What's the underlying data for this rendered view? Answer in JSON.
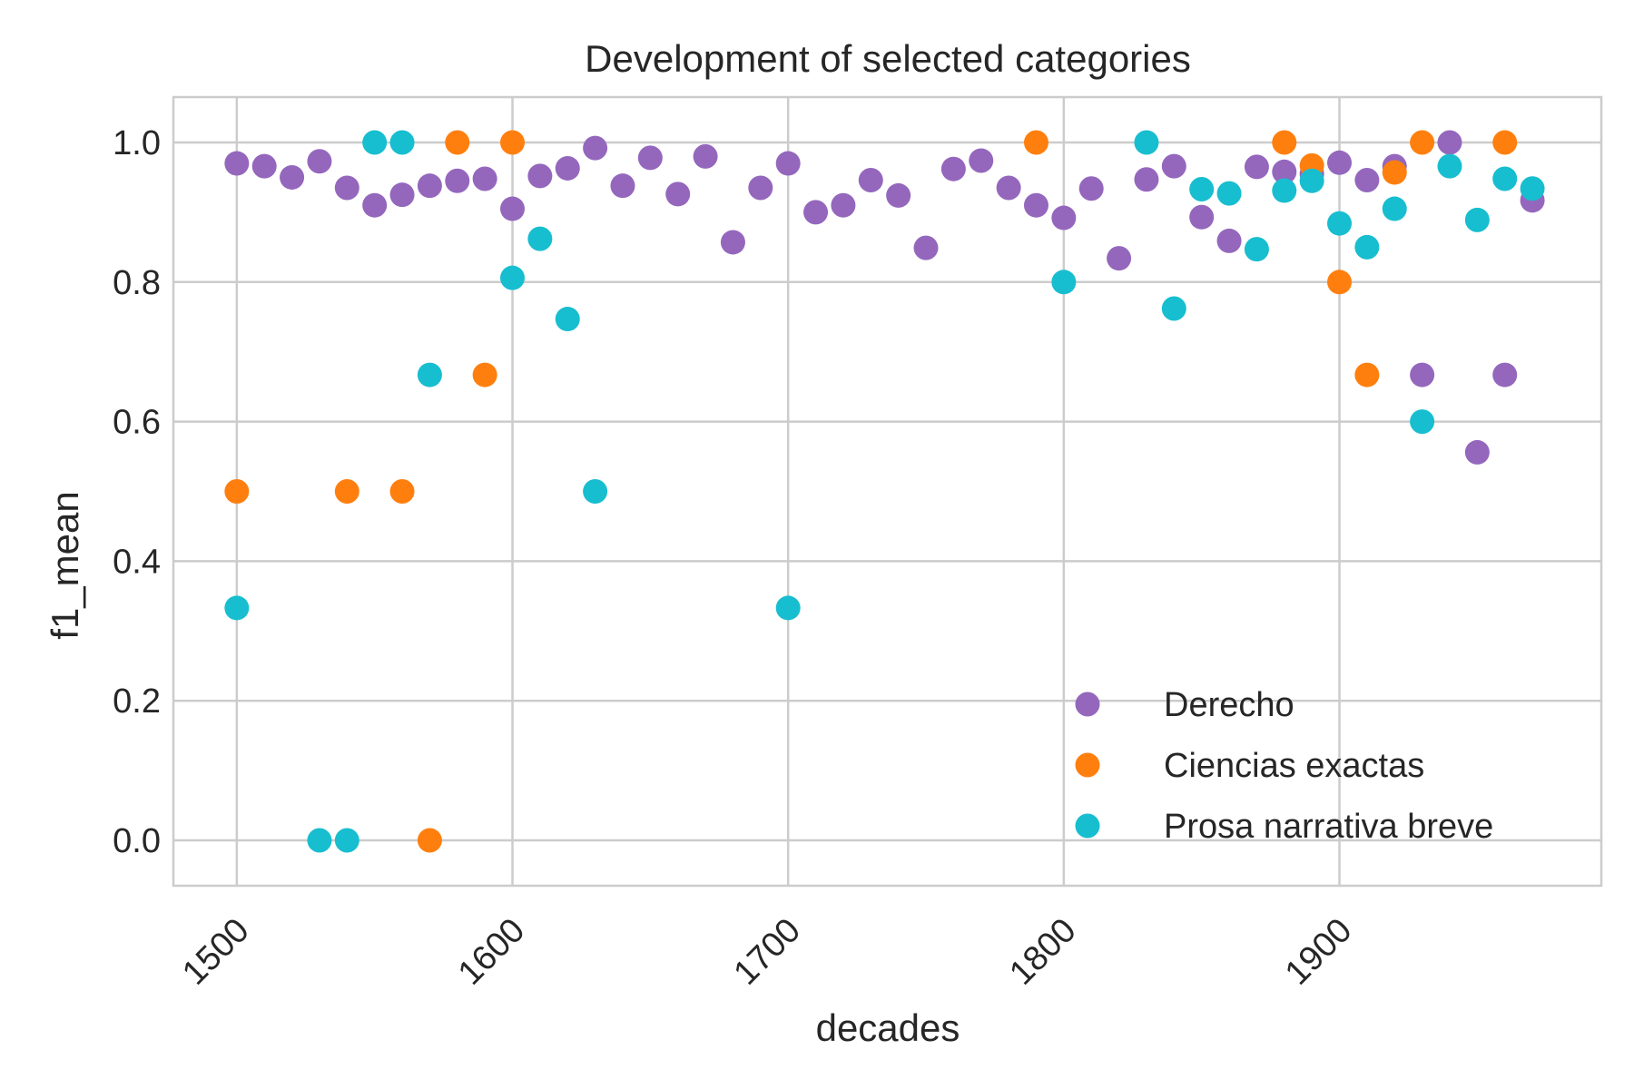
{
  "chart_data": {
    "type": "scatter",
    "title": "Development of selected categories",
    "xlabel": "decades",
    "ylabel": "f1_mean",
    "xlim": [
      1477,
      1995
    ],
    "ylim": [
      -0.065,
      1.065
    ],
    "xticks": [
      1500,
      1600,
      1700,
      1800,
      1900
    ],
    "yticks": [
      0.0,
      0.2,
      0.4,
      0.6,
      0.8,
      1.0
    ],
    "ytick_labels": [
      "0.0",
      "0.2",
      "0.4",
      "0.6",
      "0.8",
      "1.0"
    ],
    "grid": true,
    "legend_position": "lower-right",
    "series": [
      {
        "name": "Derecho",
        "color": "#9467bd",
        "points": [
          [
            1500,
            0.97
          ],
          [
            1510,
            0.966
          ],
          [
            1520,
            0.95
          ],
          [
            1530,
            0.973
          ],
          [
            1540,
            0.935
          ],
          [
            1550,
            0.91
          ],
          [
            1560,
            0.925
          ],
          [
            1570,
            0.938
          ],
          [
            1580,
            0.945
          ],
          [
            1590,
            0.948
          ],
          [
            1600,
            0.905
          ],
          [
            1610,
            0.952
          ],
          [
            1620,
            0.963
          ],
          [
            1630,
            0.992
          ],
          [
            1640,
            0.938
          ],
          [
            1650,
            0.978
          ],
          [
            1660,
            0.926
          ],
          [
            1670,
            0.98
          ],
          [
            1680,
            0.857
          ],
          [
            1690,
            0.935
          ],
          [
            1700,
            0.97
          ],
          [
            1710,
            0.9
          ],
          [
            1720,
            0.91
          ],
          [
            1730,
            0.946
          ],
          [
            1740,
            0.924
          ],
          [
            1750,
            0.849
          ],
          [
            1760,
            0.962
          ],
          [
            1770,
            0.974
          ],
          [
            1780,
            0.935
          ],
          [
            1790,
            0.91
          ],
          [
            1800,
            0.892
          ],
          [
            1810,
            0.934
          ],
          [
            1820,
            0.834
          ],
          [
            1830,
            0.947
          ],
          [
            1840,
            0.966
          ],
          [
            1850,
            0.893
          ],
          [
            1860,
            0.859
          ],
          [
            1870,
            0.965
          ],
          [
            1880,
            0.958
          ],
          [
            1890,
            0.955
          ],
          [
            1900,
            0.971
          ],
          [
            1910,
            0.946
          ],
          [
            1920,
            0.966
          ],
          [
            1930,
            0.667
          ],
          [
            1940,
            1.0
          ],
          [
            1950,
            0.556
          ],
          [
            1960,
            0.667
          ],
          [
            1970,
            0.917
          ]
        ]
      },
      {
        "name": "Ciencias exactas",
        "color": "#ff7f0e",
        "points": [
          [
            1500,
            0.5
          ],
          [
            1540,
            0.5
          ],
          [
            1560,
            0.5
          ],
          [
            1570,
            0.0
          ],
          [
            1580,
            1.0
          ],
          [
            1590,
            0.667
          ],
          [
            1600,
            1.0
          ],
          [
            1790,
            1.0
          ],
          [
            1880,
            1.0
          ],
          [
            1890,
            0.967
          ],
          [
            1900,
            0.8
          ],
          [
            1910,
            0.667
          ],
          [
            1920,
            0.957
          ],
          [
            1930,
            1.0
          ],
          [
            1960,
            1.0
          ]
        ]
      },
      {
        "name": "Prosa narrativa breve",
        "color": "#17becf",
        "points": [
          [
            1500,
            0.333
          ],
          [
            1530,
            0.0
          ],
          [
            1540,
            0.0
          ],
          [
            1550,
            1.0
          ],
          [
            1560,
            1.0
          ],
          [
            1570,
            0.667
          ],
          [
            1600,
            0.806
          ],
          [
            1610,
            0.862
          ],
          [
            1620,
            0.747
          ],
          [
            1630,
            0.5
          ],
          [
            1700,
            0.333
          ],
          [
            1800,
            0.8
          ],
          [
            1830,
            1.0
          ],
          [
            1840,
            0.762
          ],
          [
            1850,
            0.933
          ],
          [
            1860,
            0.927
          ],
          [
            1870,
            0.847
          ],
          [
            1880,
            0.931
          ],
          [
            1890,
            0.945
          ],
          [
            1900,
            0.884
          ],
          [
            1910,
            0.85
          ],
          [
            1920,
            0.905
          ],
          [
            1930,
            0.6
          ],
          [
            1940,
            0.966
          ],
          [
            1950,
            0.889
          ],
          [
            1960,
            0.948
          ],
          [
            1970,
            0.934
          ]
        ]
      }
    ]
  }
}
